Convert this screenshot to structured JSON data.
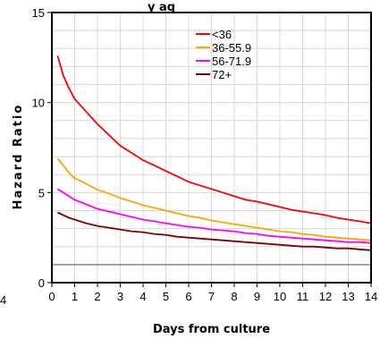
{
  "chart_data": {
    "type": "line",
    "title": "",
    "xlabel": "Days from culture",
    "ylabel": "Hazard Ratio",
    "xlim": [
      0,
      14
    ],
    "ylim": [
      0,
      15
    ],
    "xticks": [
      "0",
      "1",
      "2",
      "3",
      "4",
      "5",
      "6",
      "7",
      "8",
      "9",
      "10",
      "11",
      "12",
      "13",
      "14"
    ],
    "yticks": [
      "0",
      "5",
      "10",
      "15"
    ],
    "grid": true,
    "legend_position": "top-right",
    "left_fragments": {
      "top": "y ag",
      "left_edge": "4"
    },
    "reference_line": {
      "y": 1,
      "color": "#888888"
    },
    "series": [
      {
        "name": "<36",
        "color": "#ff0000",
        "x": [
          0.25,
          0.5,
          0.75,
          1,
          1.5,
          2,
          2.5,
          3,
          3.5,
          4,
          4.5,
          5,
          5.5,
          6,
          6.5,
          7,
          7.5,
          8,
          8.5,
          9,
          9.5,
          10,
          10.5,
          11,
          11.5,
          12,
          12.5,
          13,
          13.5,
          14
        ],
        "y": [
          12.6,
          11.5,
          10.8,
          10.2,
          9.5,
          8.8,
          8.2,
          7.6,
          7.2,
          6.8,
          6.5,
          6.2,
          5.9,
          5.6,
          5.4,
          5.2,
          5.0,
          4.8,
          4.6,
          4.5,
          4.35,
          4.2,
          4.05,
          3.95,
          3.85,
          3.75,
          3.6,
          3.5,
          3.4,
          3.3
        ]
      },
      {
        "name": "36-55.9",
        "color": "#ffa500",
        "x": [
          0.25,
          0.5,
          0.75,
          1,
          1.5,
          2,
          2.5,
          3,
          3.5,
          4,
          4.5,
          5,
          5.5,
          6,
          6.5,
          7,
          7.5,
          8,
          8.5,
          9,
          9.5,
          10,
          10.5,
          11,
          11.5,
          12,
          12.5,
          13,
          13.5,
          14
        ],
        "y": [
          6.9,
          6.5,
          6.1,
          5.8,
          5.5,
          5.15,
          4.95,
          4.7,
          4.5,
          4.3,
          4.15,
          4.0,
          3.85,
          3.7,
          3.6,
          3.45,
          3.35,
          3.25,
          3.15,
          3.05,
          2.95,
          2.85,
          2.8,
          2.7,
          2.65,
          2.55,
          2.5,
          2.45,
          2.4,
          2.35
        ]
      },
      {
        "name": "56-71.9",
        "color": "#ff00ff",
        "x": [
          0.25,
          0.5,
          0.75,
          1,
          1.5,
          2,
          2.5,
          3,
          3.5,
          4,
          4.5,
          5,
          5.5,
          6,
          6.5,
          7,
          7.5,
          8,
          8.5,
          9,
          9.5,
          10,
          10.5,
          11,
          11.5,
          12,
          12.5,
          13,
          13.5,
          14
        ],
        "y": [
          5.2,
          5.0,
          4.8,
          4.6,
          4.35,
          4.1,
          3.95,
          3.8,
          3.65,
          3.5,
          3.4,
          3.3,
          3.2,
          3.1,
          3.05,
          2.95,
          2.9,
          2.85,
          2.75,
          2.7,
          2.6,
          2.55,
          2.5,
          2.45,
          2.4,
          2.35,
          2.3,
          2.25,
          2.25,
          2.2
        ]
      },
      {
        "name": "72+",
        "color": "#800000",
        "x": [
          0.25,
          0.5,
          0.75,
          1,
          1.5,
          2,
          2.5,
          3,
          3.5,
          4,
          4.5,
          5,
          5.5,
          6,
          6.5,
          7,
          7.5,
          8,
          8.5,
          9,
          9.5,
          10,
          10.5,
          11,
          11.5,
          12,
          12.5,
          13,
          13.5,
          14
        ],
        "y": [
          3.9,
          3.75,
          3.6,
          3.5,
          3.3,
          3.15,
          3.05,
          2.95,
          2.85,
          2.8,
          2.7,
          2.65,
          2.55,
          2.5,
          2.45,
          2.4,
          2.35,
          2.3,
          2.25,
          2.2,
          2.15,
          2.1,
          2.05,
          2.0,
          2.0,
          1.95,
          1.9,
          1.9,
          1.85,
          1.8
        ]
      }
    ]
  }
}
